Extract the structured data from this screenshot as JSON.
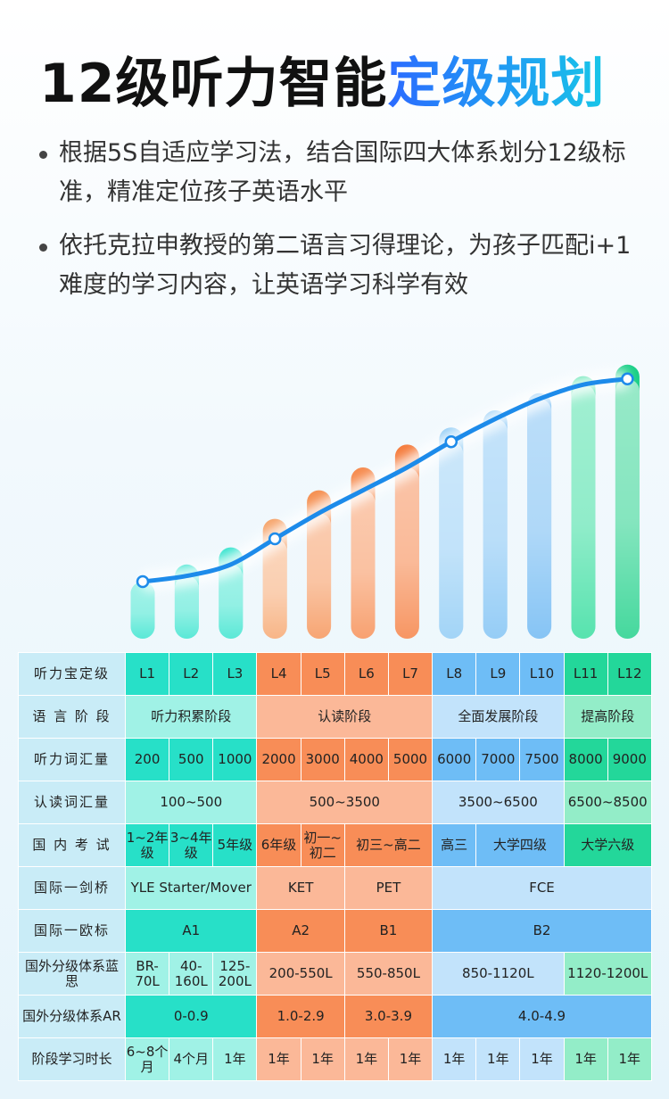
{
  "title": {
    "part1": "12级听力智能",
    "part2": "定级规划"
  },
  "bullets": [
    "根据5S自适应学习法，结合国际四大体系划分12级标准，精准定位孩子英语水平",
    "依托克拉申教授的第二语言习得理论，为孩子匹配i+1 难度的学习内容，让英语学习科学有效"
  ],
  "chart_data": {
    "type": "bar",
    "categories": [
      "L1",
      "L2",
      "L3",
      "L4",
      "L5",
      "L6",
      "L7",
      "L8",
      "L9",
      "L10",
      "L11",
      "L12"
    ],
    "values": [
      1,
      1.3,
      1.6,
      2.1,
      2.6,
      3.0,
      3.4,
      3.7,
      4.0,
      4.3,
      4.6,
      4.8
    ],
    "trend": [
      1.0,
      1.1,
      1.3,
      1.75,
      2.2,
      2.6,
      3.0,
      3.45,
      3.85,
      4.2,
      4.45,
      4.55
    ],
    "trend_markers": [
      0,
      3,
      7,
      11
    ],
    "ylim": [
      0,
      5
    ],
    "colors": [
      "#33e3cd",
      "#33e3cd",
      "#33e3cd",
      "#f6a46b",
      "#f59052",
      "#f68b4f",
      "#f57d3e",
      "#8ccaf5",
      "#7cc1f4",
      "#69b6f2",
      "#2fdc9b",
      "#19cf86"
    ],
    "trend_color": "#1d8bea"
  },
  "table": {
    "headers": {
      "level": "听力宝定级",
      "stage": "语 言 阶 段",
      "listen_vocab": "听力词汇量",
      "read_vocab": "认读词汇量",
      "domestic": "国 内 考 试",
      "cambridge": "国际一剑桥",
      "cefr": "国际一欧标",
      "lexile": "国外分级体系蓝思",
      "ar": "国外分级体系AR",
      "duration": "阶段学习时长"
    },
    "levels": [
      "L1",
      "L2",
      "L3",
      "L4",
      "L5",
      "L6",
      "L7",
      "L8",
      "L9",
      "L10",
      "L11",
      "L12"
    ],
    "stages": [
      "听力积累阶段",
      "认读阶段",
      "全面发展阶段",
      "提高阶段"
    ],
    "listen_vocab": [
      "200",
      "500",
      "1000",
      "2000",
      "3000",
      "4000",
      "5000",
      "6000",
      "7000",
      "7500",
      "8000",
      "9000"
    ],
    "read_vocab": [
      "100~500",
      "500~3500",
      "3500~6500",
      "6500~8500"
    ],
    "domestic": [
      "1~2年级",
      "3~4年级",
      "5年级",
      "6年级",
      "初一~初二",
      "初三~高二",
      "高三",
      "大学四级",
      "大学六级"
    ],
    "cambridge": [
      "YLE Starter/Mover",
      "KET",
      "PET",
      "FCE"
    ],
    "cefr": [
      "A1",
      "A2",
      "B1",
      "B2"
    ],
    "lexile": [
      "BR-70L",
      "40-160L",
      "125-200L",
      "200-550L",
      "550-850L",
      "850-1120L",
      "1120-1200L"
    ],
    "ar": [
      "0-0.9",
      "1.0-2.9",
      "3.0-3.9",
      "4.0-4.9"
    ],
    "duration": [
      "6~8个月",
      "4个月",
      "1年",
      "1年",
      "1年",
      "1年",
      "1年",
      "1年",
      "1年",
      "1年",
      "1年",
      "1年"
    ]
  }
}
